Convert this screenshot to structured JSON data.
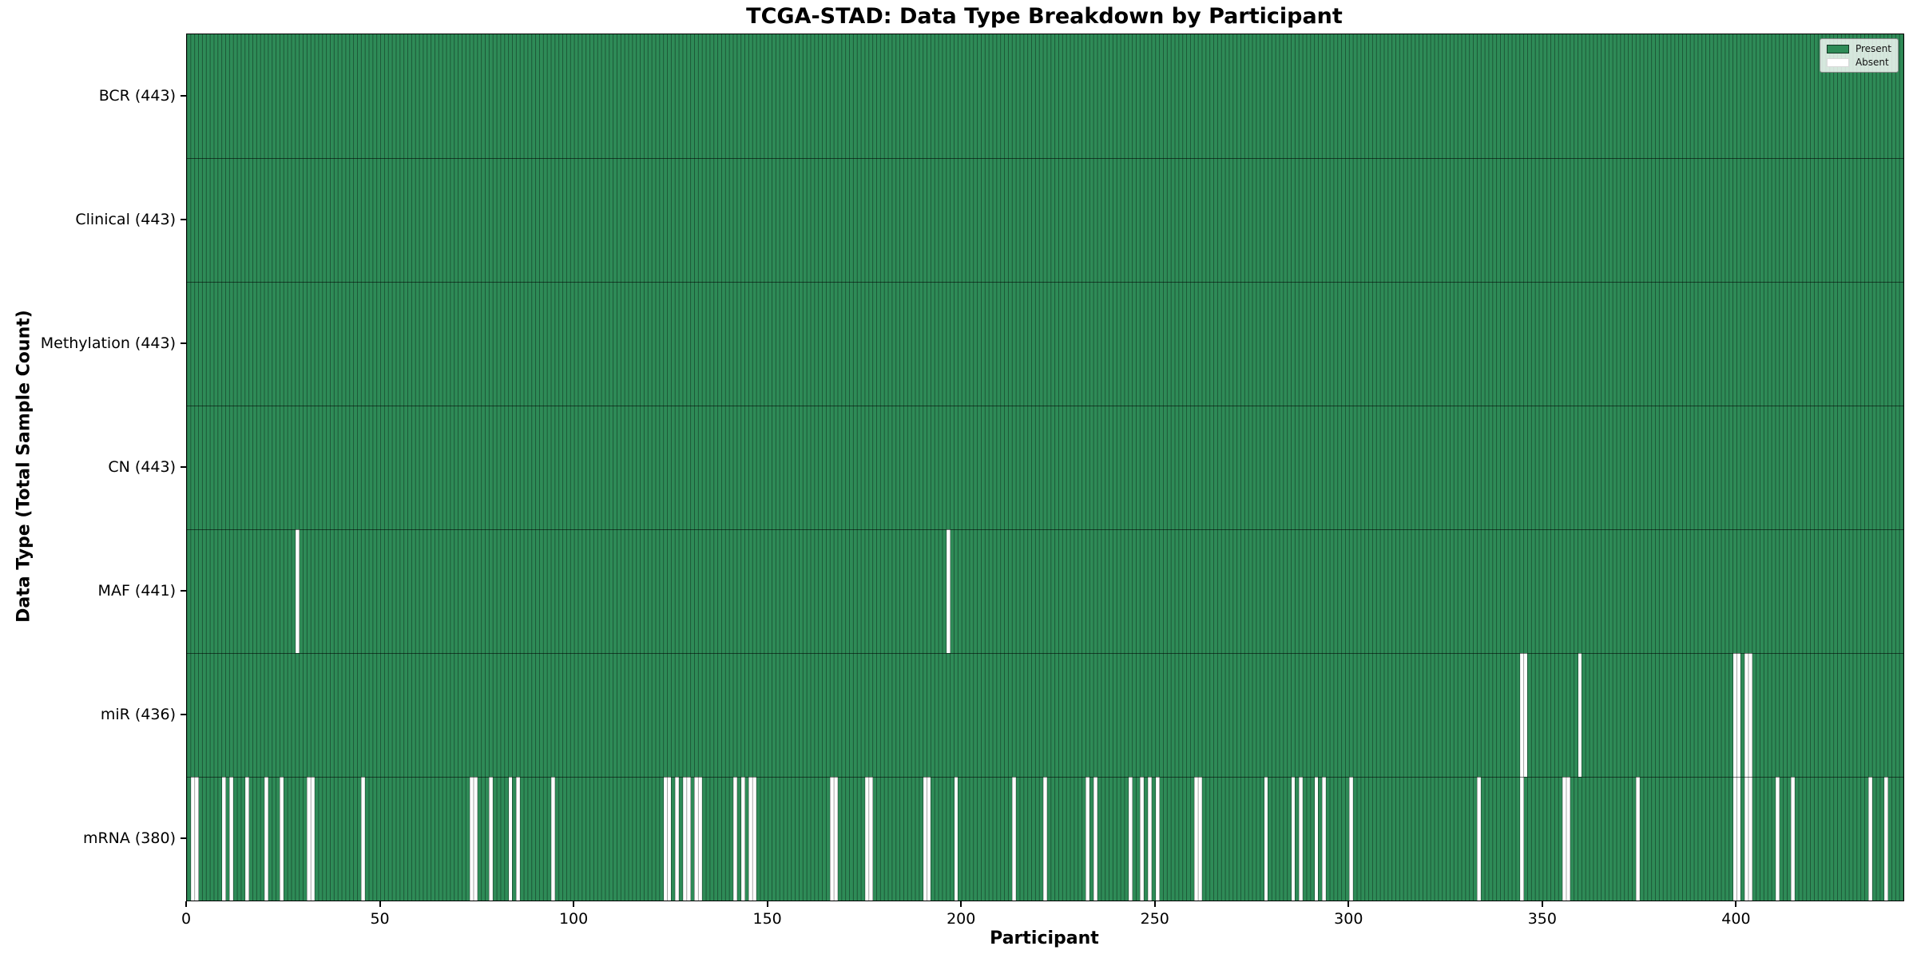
{
  "title": "TCGA-STAD: Data Type Breakdown by Participant",
  "xlabel": "Participant",
  "ylabel": "Data Type (Total Sample Count)",
  "legend": {
    "present_label": "Present",
    "absent_label": "Absent",
    "position": "upper right"
  },
  "colors": {
    "present": "#2E8B57",
    "absent": "#FFFFFF",
    "bar_edge": "rgba(0,0,0,0.40)",
    "row_separator": "rgba(0,0,0,0.55)"
  },
  "x_ticks": [
    0,
    50,
    100,
    150,
    200,
    250,
    300,
    350,
    400
  ],
  "chart_data": {
    "type": "heatmap",
    "title": "TCGA-STAD: Data Type Breakdown by Participant",
    "xlabel": "Participant",
    "ylabel": "Data Type (Total Sample Count)",
    "x_range": [
      0,
      443
    ],
    "n_participants": 443,
    "grid": false,
    "legend_entries": [
      "Present",
      "Absent"
    ],
    "rows": [
      {
        "name": "BCR",
        "label": "BCR (443)",
        "present_count": 443,
        "absent_count": 0,
        "absent_participants": []
      },
      {
        "name": "Clinical",
        "label": "Clinical (443)",
        "present_count": 443,
        "absent_count": 0,
        "absent_participants": []
      },
      {
        "name": "Methylation",
        "label": "Methylation (443)",
        "present_count": 443,
        "absent_count": 0,
        "absent_participants": []
      },
      {
        "name": "CN",
        "label": "CN (443)",
        "present_count": 443,
        "absent_count": 0,
        "absent_participants": []
      },
      {
        "name": "MAF",
        "label": "MAF (441)",
        "present_count": 441,
        "absent_count": 2,
        "absent_participants": [
          28,
          196
        ]
      },
      {
        "name": "miR",
        "label": "miR (436)",
        "present_count": 436,
        "absent_count": 7,
        "absent_participants": [
          344,
          345,
          359,
          399,
          400,
          402,
          403
        ]
      },
      {
        "name": "mRNA",
        "label": "mRNA (380)",
        "present_count": 380,
        "absent_count": 63,
        "absent_participants": [
          1,
          2,
          9,
          11,
          15,
          20,
          24,
          31,
          32,
          45,
          73,
          74,
          78,
          83,
          85,
          94,
          123,
          124,
          126,
          128,
          129,
          131,
          132,
          141,
          143,
          145,
          146,
          166,
          167,
          175,
          176,
          190,
          191,
          198,
          213,
          221,
          232,
          234,
          243,
          246,
          248,
          250,
          260,
          261,
          278,
          285,
          287,
          291,
          293,
          300,
          333,
          344,
          355,
          356,
          374,
          399,
          400,
          402,
          403,
          410,
          414,
          434,
          438
        ]
      }
    ]
  }
}
